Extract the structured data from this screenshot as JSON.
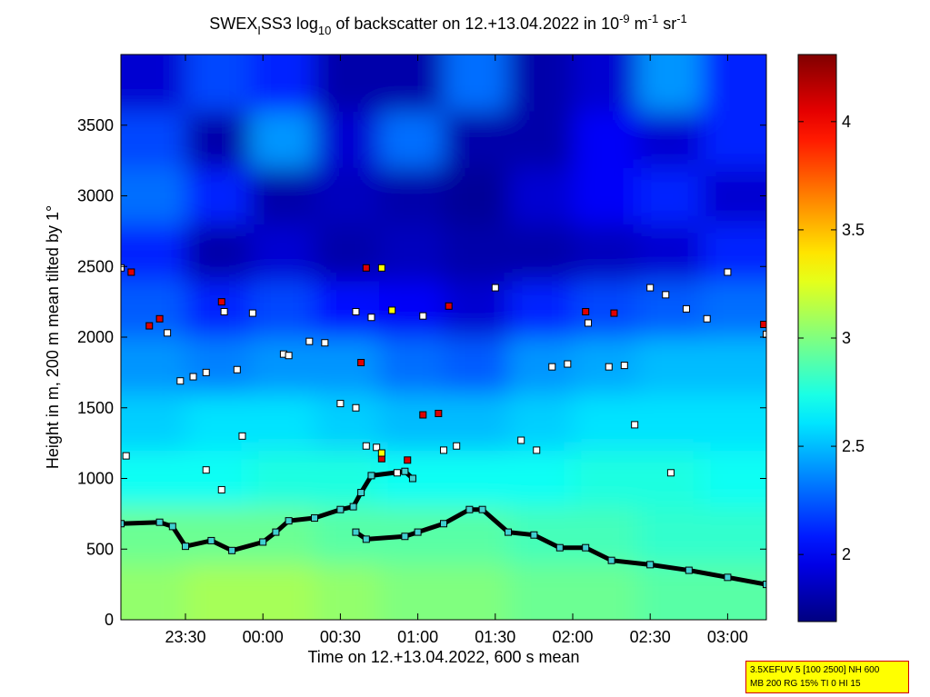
{
  "chart_data": {
    "type": "heatmap",
    "title": [
      "SWEX",
      "I",
      "SS3 log",
      "10",
      " of backscatter on 12.+13.04.2022 in 10",
      "-9",
      " m",
      "-1",
      " sr",
      "-1"
    ],
    "xlabel": "Time on 12.+13.04.2022, 600 s mean",
    "ylabel": "Height in m, 200 m mean tilted by 1°",
    "xlim": [
      1385,
      1635
    ],
    "ylim": [
      0,
      4000
    ],
    "xticks": [
      {
        "value": 1410,
        "label": "23:30"
      },
      {
        "value": 1440,
        "label": "00:00"
      },
      {
        "value": 1470,
        "label": "00:30"
      },
      {
        "value": 1500,
        "label": "01:00"
      },
      {
        "value": 1530,
        "label": "01:30"
      },
      {
        "value": 1560,
        "label": "02:00"
      },
      {
        "value": 1590,
        "label": "02:30"
      },
      {
        "value": 1620,
        "label": "03:00"
      }
    ],
    "yticks": [
      0,
      500,
      1000,
      1500,
      2000,
      2500,
      3000,
      3500
    ],
    "colormap": "jet",
    "clim": [
      1.69,
      4.31
    ],
    "cticks": [
      2,
      2.5,
      3,
      3.5,
      4
    ],
    "x_edges": [
      1385,
      1410,
      1435,
      1460,
      1485,
      1510,
      1535,
      1560,
      1585,
      1610,
      1635
    ],
    "y_edges": [
      0,
      400,
      800,
      1200,
      1600,
      2000,
      2400,
      2800,
      3200,
      3600,
      4000
    ],
    "z": [
      [
        3.05,
        3.1,
        3.1,
        3.05,
        3.0,
        3.0,
        2.95,
        2.95,
        2.9,
        2.9
      ],
      [
        2.95,
        2.95,
        2.95,
        2.9,
        2.9,
        2.9,
        2.85,
        2.85,
        2.8,
        2.8
      ],
      [
        2.7,
        2.7,
        2.75,
        2.75,
        2.7,
        2.7,
        2.7,
        2.75,
        2.75,
        2.7
      ],
      [
        2.55,
        2.6,
        2.6,
        2.55,
        2.5,
        2.5,
        2.55,
        2.6,
        2.6,
        2.6
      ],
      [
        2.4,
        2.35,
        2.4,
        2.4,
        2.3,
        2.25,
        2.4,
        2.45,
        2.5,
        2.5
      ],
      [
        2.25,
        2.1,
        2.2,
        2.05,
        2.0,
        1.9,
        2.1,
        2.2,
        2.25,
        2.3
      ],
      [
        2.1,
        1.8,
        1.9,
        1.8,
        1.85,
        1.8,
        1.8,
        1.85,
        1.9,
        2.1
      ],
      [
        2.3,
        2.1,
        1.8,
        1.85,
        1.8,
        1.75,
        1.9,
        2.0,
        2.1,
        1.9
      ],
      [
        2.2,
        1.8,
        2.4,
        1.9,
        2.3,
        1.8,
        1.8,
        2.0,
        1.9,
        2.1
      ],
      [
        1.9,
        2.2,
        2.1,
        1.8,
        1.8,
        2.3,
        1.8,
        1.9,
        2.4,
        2.1
      ]
    ],
    "series": [
      {
        "color": "#3fd0d0",
        "line": true,
        "x": [
          1385,
          1400,
          1405,
          1410,
          1420,
          1428,
          1440,
          1445,
          1450,
          1460,
          1470,
          1475,
          1478,
          1482,
          1495,
          1498
        ],
        "values": [
          680,
          690,
          660,
          520,
          560,
          490,
          550,
          620,
          700,
          720,
          780,
          800,
          900,
          1020,
          1050,
          1000
        ]
      },
      {
        "color": "#3fd0d0",
        "line": true,
        "x": [
          1476,
          1480,
          1495,
          1500,
          1510,
          1520,
          1525,
          1535,
          1545,
          1555,
          1565,
          1575,
          1590,
          1605,
          1620,
          1635
        ],
        "values": [
          620,
          570,
          590,
          620,
          680,
          780,
          780,
          620,
          600,
          510,
          510,
          420,
          390,
          350,
          300,
          250
        ]
      },
      {
        "color": "#ffffff",
        "line": false,
        "x": [
          1385,
          1387,
          1403,
          1408,
          1413,
          1418,
          1425,
          1430,
          1432,
          1436,
          1448,
          1450,
          1458,
          1464,
          1470,
          1476,
          1480,
          1484,
          1476,
          1482,
          1502,
          1510,
          1515,
          1530,
          1540,
          1546,
          1552,
          1558,
          1566,
          1574,
          1580,
          1584,
          1590,
          1596,
          1598,
          1604,
          1612,
          1620,
          1635,
          1424,
          1418,
          1492
        ],
        "values": [
          2490,
          1160,
          2030,
          1690,
          1720,
          1750,
          2180,
          1770,
          1300,
          2170,
          1880,
          1870,
          1970,
          1960,
          1530,
          1500,
          1230,
          1220,
          2180,
          2140,
          2150,
          1200,
          1230,
          2350,
          1270,
          1200,
          1790,
          1810,
          2100,
          1790,
          1800,
          1380,
          2350,
          2300,
          1040,
          2200,
          2130,
          2460,
          2020,
          920,
          1060,
          1040
        ]
      },
      {
        "color": "#e00000",
        "line": false,
        "x": [
          1389,
          1396,
          1400,
          1424,
          1480,
          1478,
          1486,
          1496,
          1502,
          1508,
          1512,
          1565,
          1576,
          1634
        ],
        "values": [
          2460,
          2080,
          2130,
          2250,
          2490,
          1820,
          1140,
          1130,
          1450,
          1460,
          2220,
          2180,
          2170,
          2090
        ]
      },
      {
        "color": "#ffff00",
        "line": false,
        "x": [
          1486,
          1486,
          1490
        ],
        "values": [
          2490,
          1180,
          2190
        ]
      }
    ],
    "annotations": [
      "3.5XEFUV 5 [100 2500] NH 600",
      "MB 200 RG 15% TI 0 HI 15"
    ]
  }
}
